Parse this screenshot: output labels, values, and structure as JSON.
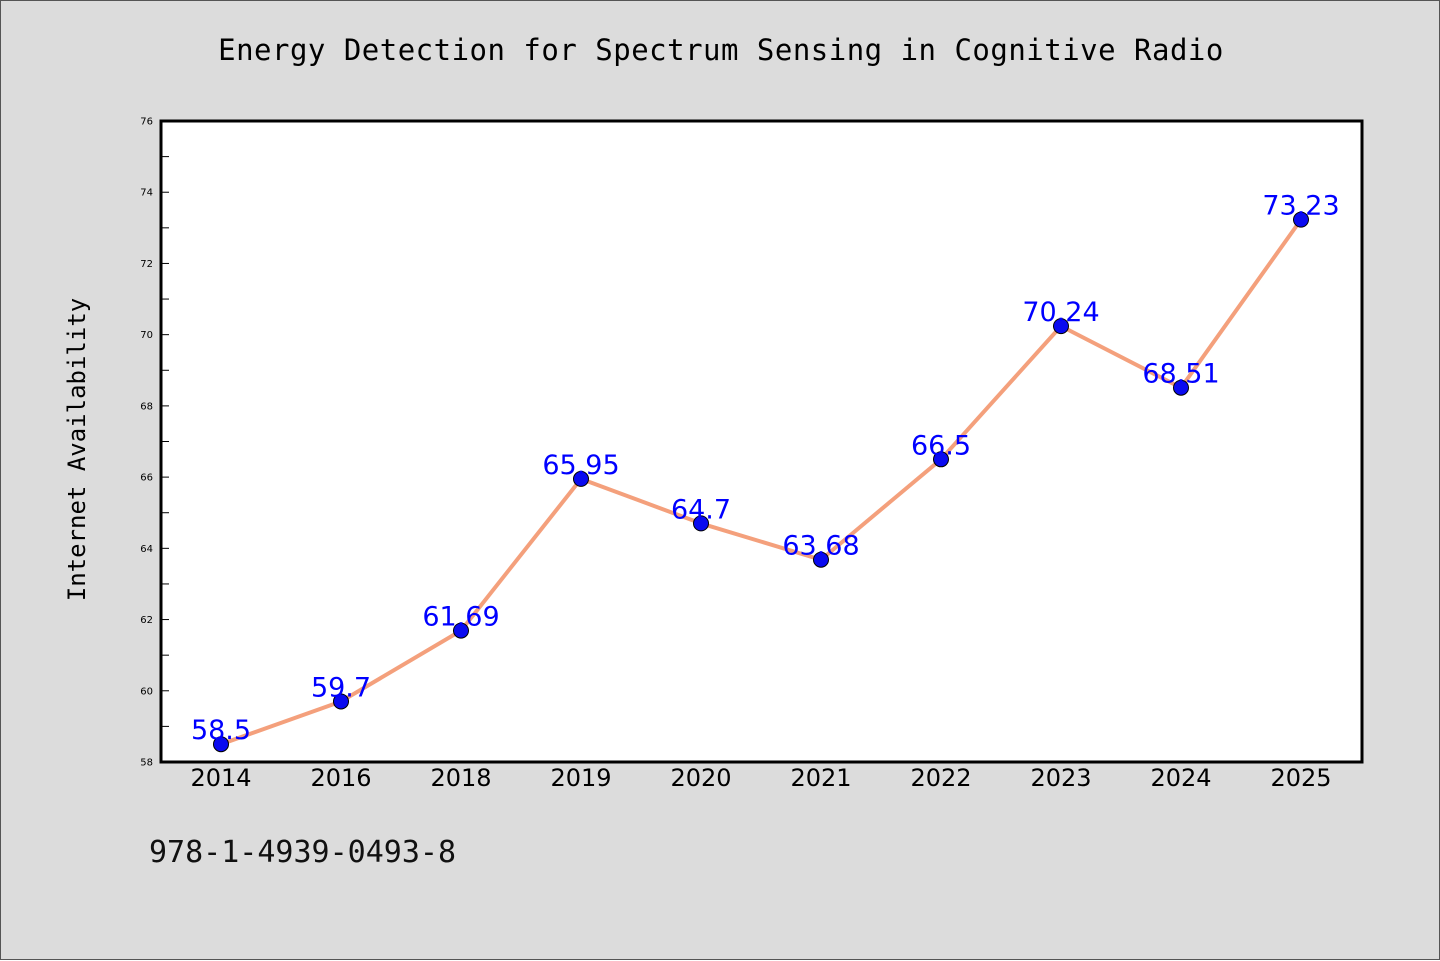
{
  "footer": {
    "code": "978-1-4939-0493-8"
  },
  "colors": {
    "background": "#dcdcdc",
    "plot_area": "#ffffff",
    "line": "#f4a07c",
    "marker": "#0a0af0",
    "data_label": "#0000ff"
  },
  "chart_data": {
    "type": "line",
    "title": "Energy Detection for Spectrum Sensing in Cognitive Radio",
    "xlabel": "",
    "ylabel": "Internet Availability",
    "categories": [
      "2014",
      "2016",
      "2018",
      "2019",
      "2020",
      "2021",
      "2022",
      "2023",
      "2024",
      "2025"
    ],
    "series": [
      {
        "values": [
          58.5,
          59.7,
          61.69,
          65.95,
          64.7,
          63.68,
          66.5,
          70.24,
          68.51,
          73.23
        ],
        "labels": [
          "58.5",
          "59.7",
          "61.69",
          "65.95",
          "64.7",
          "63.68",
          "66.5",
          "70.24",
          "68.51",
          "73.23"
        ]
      }
    ],
    "ylim": [
      58,
      76
    ],
    "yticks": [
      "58",
      "60",
      "62",
      "64",
      "66",
      "68",
      "70",
      "72",
      "74",
      "76"
    ],
    "grid": false,
    "legend": "none"
  }
}
